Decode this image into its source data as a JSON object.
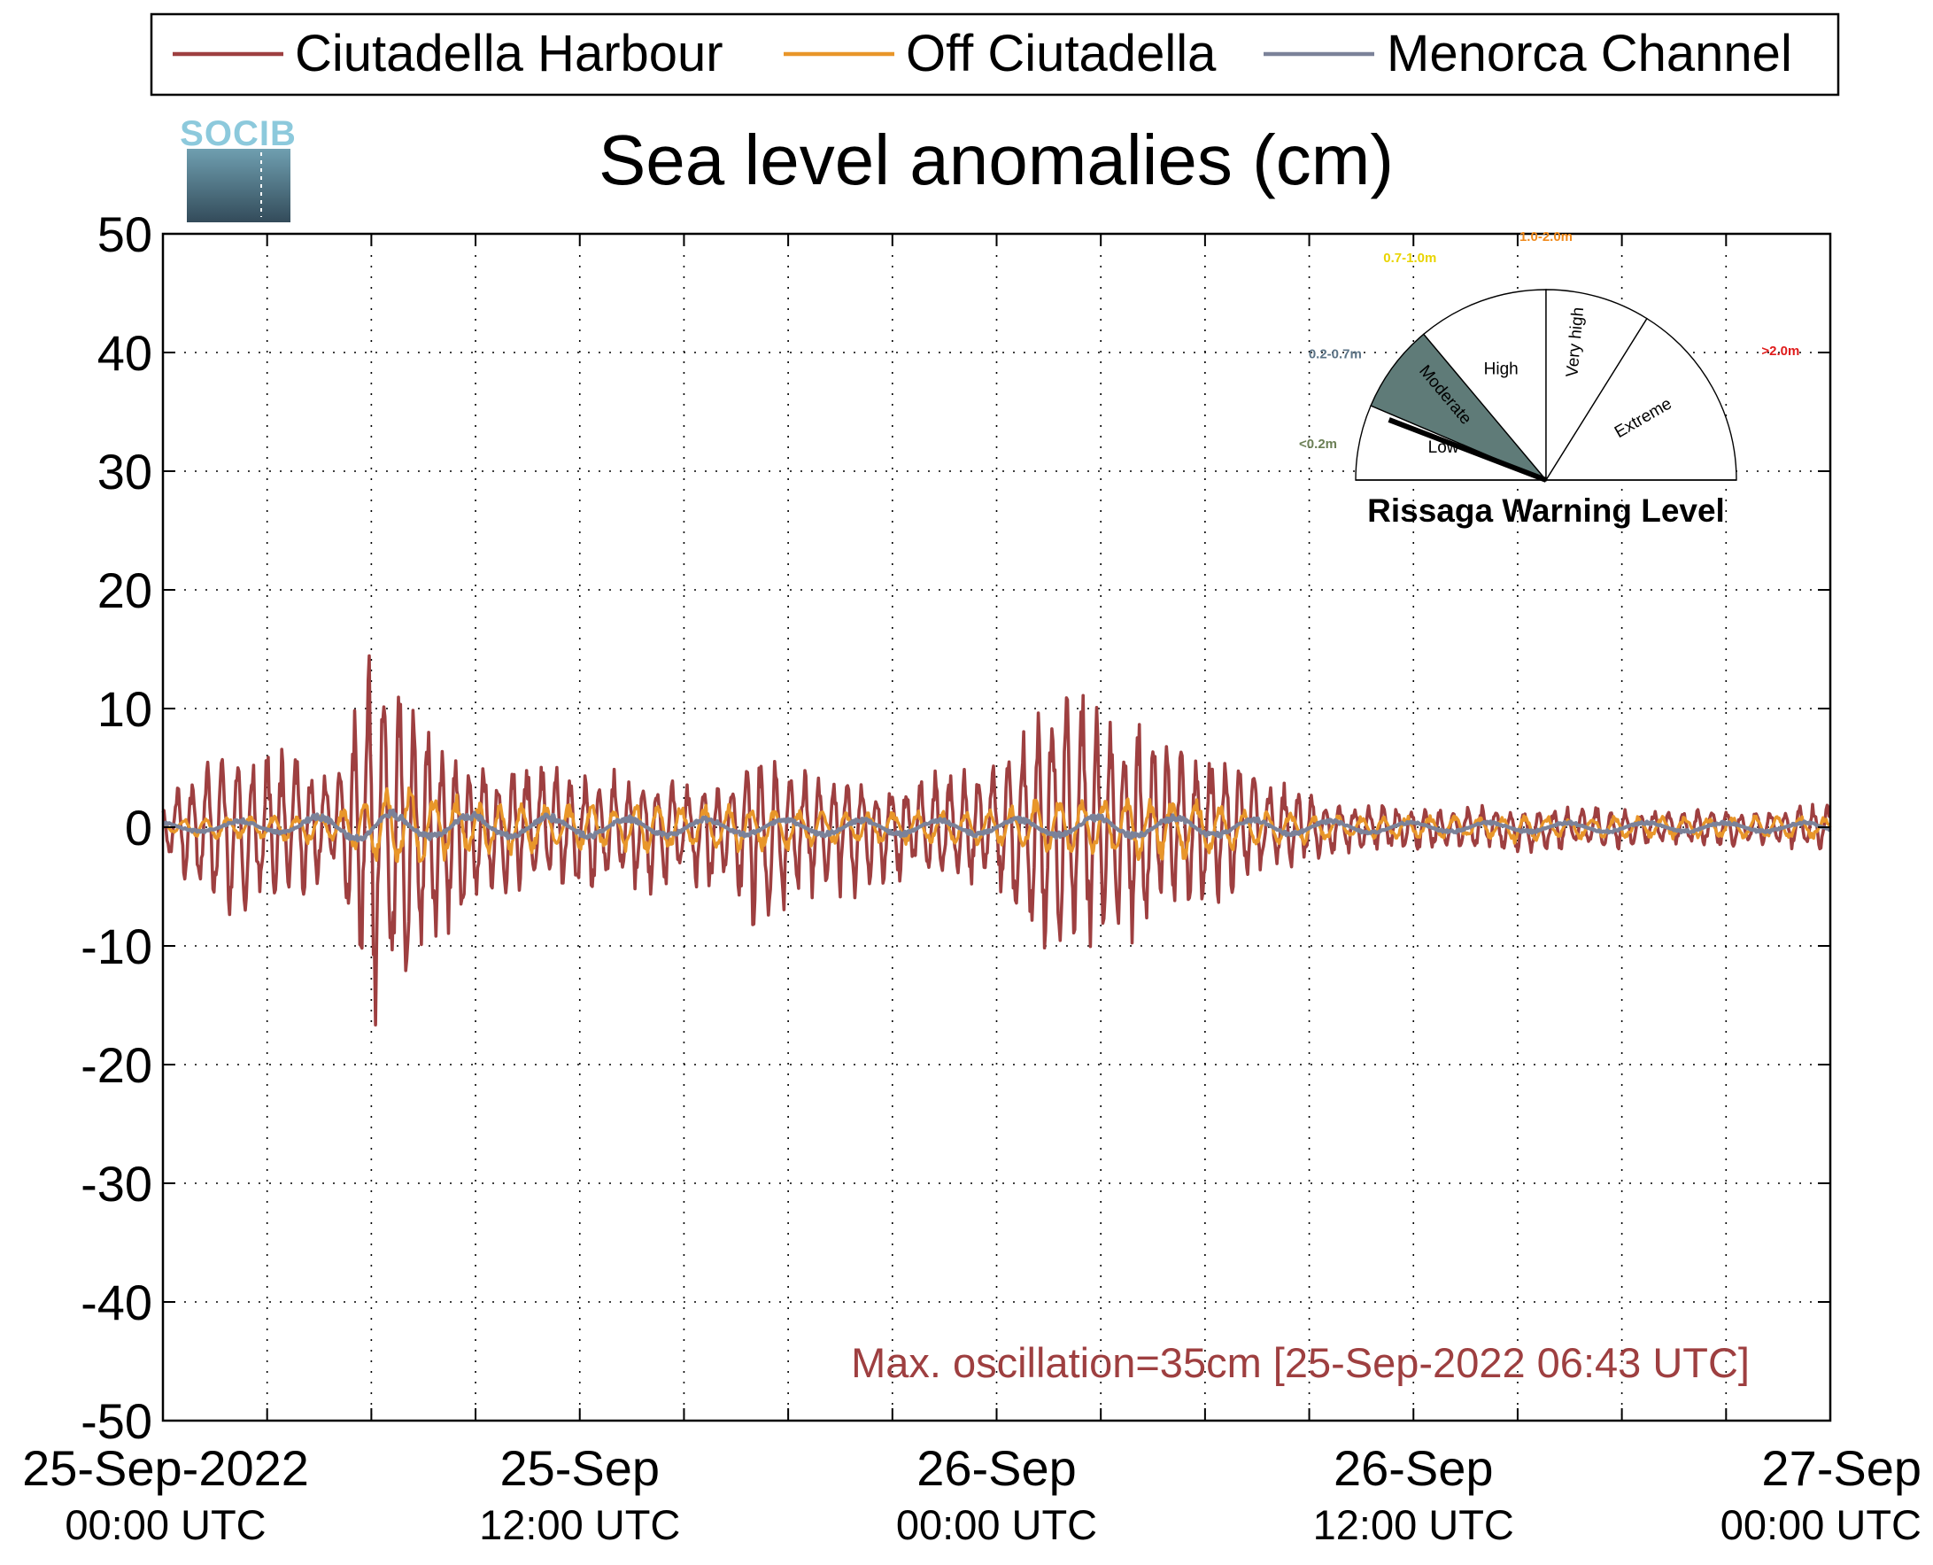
{
  "chart_data": {
    "type": "line",
    "title": "Sea level anomalies (cm)",
    "xlabel": "",
    "ylabel": "",
    "ylim": [
      -50,
      50
    ],
    "yticks": [
      50,
      40,
      30,
      20,
      10,
      0,
      -10,
      -20,
      -30,
      -40,
      -50
    ],
    "xlim": [
      "2022-09-25 00:00",
      "2022-09-27 00:00"
    ],
    "xtick_labels": [
      {
        "line1": "25-Sep-2022",
        "line2": "00:00 UTC",
        "time": "2022-09-25 00:00"
      },
      {
        "line1": "25-Sep",
        "line2": "12:00 UTC",
        "time": "2022-09-25 12:00"
      },
      {
        "line1": "26-Sep",
        "line2": "00:00 UTC",
        "time": "2022-09-26 00:00"
      },
      {
        "line1": "26-Sep",
        "line2": "12:00 UTC",
        "time": "2022-09-26 12:00"
      },
      {
        "line1": "27-Sep",
        "line2": "00:00 UTC",
        "time": "2022-09-27 00:00"
      }
    ],
    "grid": true,
    "legend_position": "top",
    "annotation": "Max. oscillation=35cm [25-Sep-2022 06:43 UTC]",
    "annotation_color": "#9e3f40",
    "series": [
      {
        "name": "Ciutadella Harbour",
        "color": "#9e3f40",
        "envelope": [
          {
            "time": "2022-09-25 00:00",
            "upper": 2,
            "lower": -2
          },
          {
            "time": "2022-09-25 01:00",
            "upper": 6,
            "lower": -7
          },
          {
            "time": "2022-09-25 02:00",
            "upper": 7,
            "lower": -8
          },
          {
            "time": "2022-09-25 03:00",
            "upper": 7,
            "lower": -7
          },
          {
            "time": "2022-09-25 04:00",
            "upper": 6,
            "lower": -6
          },
          {
            "time": "2022-09-25 05:00",
            "upper": 5,
            "lower": -4
          },
          {
            "time": "2022-09-25 06:00",
            "upper": 17,
            "lower": -17
          },
          {
            "time": "2022-09-25 07:00",
            "upper": 12,
            "lower": -16
          },
          {
            "time": "2022-09-25 08:00",
            "upper": 8,
            "lower": -10
          },
          {
            "time": "2022-09-25 09:00",
            "upper": 6,
            "lower": -7
          },
          {
            "time": "2022-09-25 10:00",
            "upper": 5,
            "lower": -6
          },
          {
            "time": "2022-09-25 11:00",
            "upper": 6,
            "lower": -5
          },
          {
            "time": "2022-09-25 12:00",
            "upper": 5,
            "lower": -6
          },
          {
            "time": "2022-09-25 13:00",
            "upper": 5,
            "lower": -5
          },
          {
            "time": "2022-09-25 14:00",
            "upper": 4,
            "lower": -6
          },
          {
            "time": "2022-09-25 15:00",
            "upper": 4,
            "lower": -5
          },
          {
            "time": "2022-09-25 16:00",
            "upper": 4,
            "lower": -6
          },
          {
            "time": "2022-09-25 17:00",
            "upper": 7,
            "lower": -9
          },
          {
            "time": "2022-09-25 18:00",
            "upper": 6,
            "lower": -7
          },
          {
            "time": "2022-09-25 19:00",
            "upper": 5,
            "lower": -6
          },
          {
            "time": "2022-09-25 20:00",
            "upper": 4,
            "lower": -6
          },
          {
            "time": "2022-09-25 21:00",
            "upper": 4,
            "lower": -5
          },
          {
            "time": "2022-09-25 22:00",
            "upper": 5,
            "lower": -4
          },
          {
            "time": "2022-09-25 23:00",
            "upper": 5,
            "lower": -5
          },
          {
            "time": "2022-09-26 00:00",
            "upper": 6,
            "lower": -5
          },
          {
            "time": "2022-09-26 01:00",
            "upper": 10,
            "lower": -10
          },
          {
            "time": "2022-09-26 02:00",
            "upper": 13,
            "lower": -13
          },
          {
            "time": "2022-09-26 03:00",
            "upper": 11,
            "lower": -10
          },
          {
            "time": "2022-09-26 04:00",
            "upper": 10,
            "lower": -10
          },
          {
            "time": "2022-09-26 05:00",
            "upper": 7,
            "lower": -7
          },
          {
            "time": "2022-09-26 06:00",
            "upper": 7,
            "lower": -8
          },
          {
            "time": "2022-09-26 07:00",
            "upper": 6,
            "lower": -5
          },
          {
            "time": "2022-09-26 08:00",
            "upper": 4,
            "lower": -4
          },
          {
            "time": "2022-09-26 09:00",
            "upper": 3,
            "lower": -3
          },
          {
            "time": "2022-09-26 10:00",
            "upper": 2,
            "lower": -3
          },
          {
            "time": "2022-09-26 11:00",
            "upper": 2,
            "lower": -2
          },
          {
            "time": "2022-09-26 12:00",
            "upper": 2,
            "lower": -2
          },
          {
            "time": "2022-09-26 13:00",
            "upper": 1.5,
            "lower": -2
          },
          {
            "time": "2022-09-26 14:00",
            "upper": 2,
            "lower": -2
          },
          {
            "time": "2022-09-26 15:00",
            "upper": 1.5,
            "lower": -2.5
          },
          {
            "time": "2022-09-26 16:00",
            "upper": 1.5,
            "lower": -2
          },
          {
            "time": "2022-09-26 17:00",
            "upper": 2,
            "lower": -2
          },
          {
            "time": "2022-09-26 18:00",
            "upper": 1.5,
            "lower": -2
          },
          {
            "time": "2022-09-26 19:00",
            "upper": 1.5,
            "lower": -1.5
          },
          {
            "time": "2022-09-26 20:00",
            "upper": 1.5,
            "lower": -1.5
          },
          {
            "time": "2022-09-26 21:00",
            "upper": 1.5,
            "lower": -2
          },
          {
            "time": "2022-09-26 22:00",
            "upper": 1.5,
            "lower": -1.5
          },
          {
            "time": "2022-09-26 23:00",
            "upper": 2,
            "lower": -2
          },
          {
            "time": "2022-09-27 00:00",
            "upper": 2,
            "lower": -2
          }
        ]
      },
      {
        "name": "Off Ciutadella",
        "color": "#e8962a",
        "envelope": [
          {
            "time": "2022-09-25 00:00",
            "upper": 0.5,
            "lower": -0.5
          },
          {
            "time": "2022-09-25 01:00",
            "upper": 1,
            "lower": -1
          },
          {
            "time": "2022-09-25 02:00",
            "upper": 1,
            "lower": -1
          },
          {
            "time": "2022-09-25 03:00",
            "upper": 1,
            "lower": -1
          },
          {
            "time": "2022-09-25 04:00",
            "upper": 1,
            "lower": -1.5
          },
          {
            "time": "2022-09-25 05:00",
            "upper": 1.5,
            "lower": -1.5
          },
          {
            "time": "2022-09-25 06:00",
            "upper": 3,
            "lower": -3
          },
          {
            "time": "2022-09-25 07:00",
            "upper": 4.5,
            "lower": -4
          },
          {
            "time": "2022-09-25 08:00",
            "upper": 3,
            "lower": -3
          },
          {
            "time": "2022-09-25 09:00",
            "upper": 2.5,
            "lower": -2.5
          },
          {
            "time": "2022-09-25 10:00",
            "upper": 2,
            "lower": -2.5
          },
          {
            "time": "2022-09-25 11:00",
            "upper": 2,
            "lower": -2
          },
          {
            "time": "2022-09-25 12:00",
            "upper": 2,
            "lower": -2
          },
          {
            "time": "2022-09-25 13:00",
            "upper": 2,
            "lower": -2
          },
          {
            "time": "2022-09-25 14:00",
            "upper": 2,
            "lower": -2.5
          },
          {
            "time": "2022-09-25 15:00",
            "upper": 2,
            "lower": -2
          },
          {
            "time": "2022-09-25 16:00",
            "upper": 2,
            "lower": -2.5
          },
          {
            "time": "2022-09-25 17:00",
            "upper": 2,
            "lower": -2
          },
          {
            "time": "2022-09-25 18:00",
            "upper": 1.5,
            "lower": -2
          },
          {
            "time": "2022-09-25 19:00",
            "upper": 1.5,
            "lower": -1.5
          },
          {
            "time": "2022-09-25 20:00",
            "upper": 1.5,
            "lower": -1.5
          },
          {
            "time": "2022-09-25 21:00",
            "upper": 1.5,
            "lower": -1.5
          },
          {
            "time": "2022-09-25 22:00",
            "upper": 1.5,
            "lower": -1.5
          },
          {
            "time": "2022-09-25 23:00",
            "upper": 1.5,
            "lower": -1.5
          },
          {
            "time": "2022-09-26 00:00",
            "upper": 1.5,
            "lower": -1.5
          },
          {
            "time": "2022-09-26 01:00",
            "upper": 2.5,
            "lower": -2
          },
          {
            "time": "2022-09-26 02:00",
            "upper": 2.5,
            "lower": -2.5
          },
          {
            "time": "2022-09-26 03:00",
            "upper": 3,
            "lower": -2.5
          },
          {
            "time": "2022-09-26 04:00",
            "upper": 2.5,
            "lower": -3
          },
          {
            "time": "2022-09-26 05:00",
            "upper": 2.5,
            "lower": -3
          },
          {
            "time": "2022-09-26 06:00",
            "upper": 2.5,
            "lower": -3
          },
          {
            "time": "2022-09-26 07:00",
            "upper": 1.5,
            "lower": -2
          },
          {
            "time": "2022-09-26 08:00",
            "upper": 1.5,
            "lower": -1.5
          },
          {
            "time": "2022-09-26 09:00",
            "upper": 1,
            "lower": -1.5
          },
          {
            "time": "2022-09-26 10:00",
            "upper": 1,
            "lower": -1
          },
          {
            "time": "2022-09-26 11:00",
            "upper": 1,
            "lower": -1
          },
          {
            "time": "2022-09-26 12:00",
            "upper": 1,
            "lower": -1
          },
          {
            "time": "2022-09-26 13:00",
            "upper": 1,
            "lower": -1
          },
          {
            "time": "2022-09-26 14:00",
            "upper": 1,
            "lower": -1
          },
          {
            "time": "2022-09-26 15:00",
            "upper": 1,
            "lower": -1.5
          },
          {
            "time": "2022-09-26 16:00",
            "upper": 1,
            "lower": -1
          },
          {
            "time": "2022-09-26 17:00",
            "upper": 1,
            "lower": -1
          },
          {
            "time": "2022-09-26 18:00",
            "upper": 1,
            "lower": -1
          },
          {
            "time": "2022-09-26 19:00",
            "upper": 1,
            "lower": -1
          },
          {
            "time": "2022-09-26 20:00",
            "upper": 1,
            "lower": -1
          },
          {
            "time": "2022-09-26 21:00",
            "upper": 1,
            "lower": -1
          },
          {
            "time": "2022-09-26 22:00",
            "upper": 1,
            "lower": -1
          },
          {
            "time": "2022-09-26 23:00",
            "upper": 1,
            "lower": -1
          },
          {
            "time": "2022-09-27 00:00",
            "upper": 1,
            "lower": -1
          }
        ]
      },
      {
        "name": "Menorca Channel",
        "color": "#7b8299",
        "envelope": [
          {
            "time": "2022-09-25 00:00",
            "upper": 0.5,
            "lower": -0.5
          },
          {
            "time": "2022-09-25 03:00",
            "upper": 0.8,
            "lower": -0.5
          },
          {
            "time": "2022-09-25 06:00",
            "upper": 1.5,
            "lower": -1.5
          },
          {
            "time": "2022-09-25 08:00",
            "upper": 1.5,
            "lower": -1
          },
          {
            "time": "2022-09-25 12:00",
            "upper": 1,
            "lower": -1
          },
          {
            "time": "2022-09-25 18:00",
            "upper": 0.8,
            "lower": -0.8
          },
          {
            "time": "2022-09-26 00:00",
            "upper": 0.8,
            "lower": -0.8
          },
          {
            "time": "2022-09-26 03:00",
            "upper": 1.2,
            "lower": -1
          },
          {
            "time": "2022-09-26 06:00",
            "upper": 1,
            "lower": -1
          },
          {
            "time": "2022-09-26 12:00",
            "upper": 0.5,
            "lower": -0.5
          },
          {
            "time": "2022-09-26 18:00",
            "upper": 0.5,
            "lower": -0.5
          },
          {
            "time": "2022-09-27 00:00",
            "upper": 0.5,
            "lower": -0.5
          }
        ]
      }
    ]
  },
  "logo": {
    "text": "SOCIB",
    "top_color": "#8cc9dc",
    "bottom_color": "#334b5a"
  },
  "gauge": {
    "title": "Rissaga Warning Level",
    "active_level": "Moderate",
    "active_color": "#5f7b78",
    "sectors": [
      {
        "label": "Low",
        "range": "<0.2m",
        "range_color": "#6b7f55"
      },
      {
        "label": "Moderate",
        "range": "0.2-0.7m",
        "range_color": "#5a7285"
      },
      {
        "label": "High",
        "range": "0.7-1.0m",
        "range_color": "#e9d400"
      },
      {
        "label": "Very high",
        "range": "1.0-2.0m",
        "range_color": "#f08a1c"
      },
      {
        "label": "Extreme",
        "range": ">2.0m",
        "range_color": "#e01b1b"
      }
    ]
  }
}
